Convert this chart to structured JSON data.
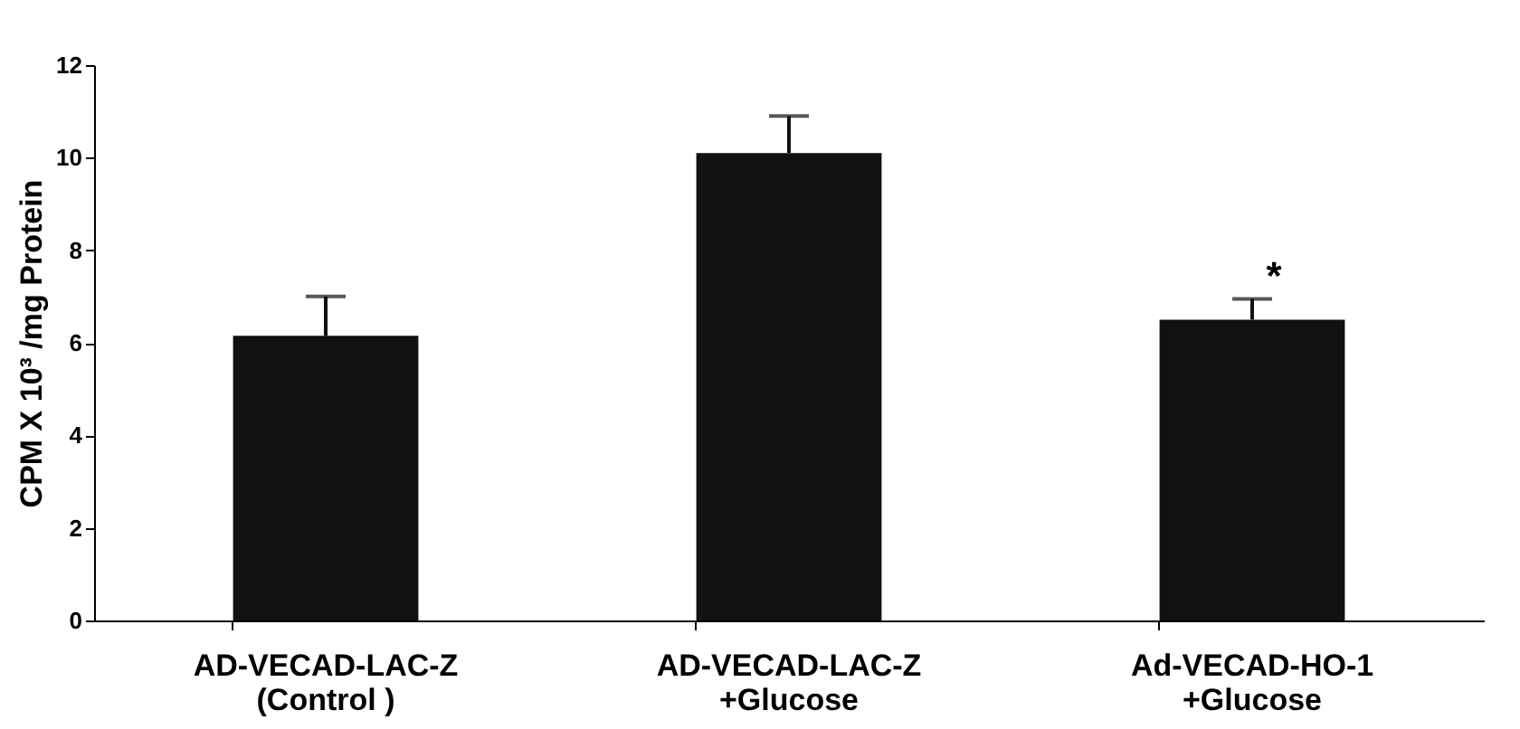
{
  "chart_data": {
    "type": "bar",
    "ylabel": "CPM X 10³ /mg Protein",
    "categories": [
      "AD-VECAD-LAC-Z\n(Control )",
      "AD-VECAD-LAC-Z\n+Glucose",
      "Ad-VECAD-HO-1\n+Glucose"
    ],
    "values": [
      6.15,
      10.1,
      6.5
    ],
    "errors": [
      [
        6.15,
        7.0
      ],
      [
        10.1,
        10.9
      ],
      [
        6.5,
        6.95
      ]
    ],
    "color": "#111111",
    "ylim": [
      0,
      12
    ],
    "yticks": [
      0,
      2,
      4,
      6,
      8,
      10,
      12
    ],
    "grid": false,
    "annotations": [
      "*"
    ]
  }
}
